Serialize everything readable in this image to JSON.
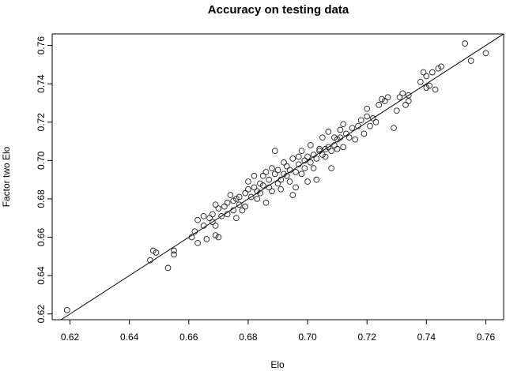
{
  "chart_data": {
    "type": "scatter",
    "title": "Accuracy on testing data",
    "xlabel": "Elo",
    "ylabel": "Factor two Elo",
    "xlim": [
      0.614,
      0.766
    ],
    "ylim": [
      0.617,
      0.766
    ],
    "xticks": [
      "0.62",
      "0.64",
      "0.66",
      "0.68",
      "0.70",
      "0.72",
      "0.74",
      "0.76"
    ],
    "yticks": [
      "0.62",
      "0.64",
      "0.66",
      "0.68",
      "0.70",
      "0.72",
      "0.74",
      "0.76"
    ],
    "grid": false,
    "marker": "open-circle",
    "reference_line": {
      "slope": 1,
      "intercept": 0
    },
    "points": [
      [
        0.619,
        0.622
      ],
      [
        0.647,
        0.648
      ],
      [
        0.648,
        0.653
      ],
      [
        0.649,
        0.652
      ],
      [
        0.653,
        0.644
      ],
      [
        0.655,
        0.653
      ],
      [
        0.655,
        0.651
      ],
      [
        0.661,
        0.66
      ],
      [
        0.662,
        0.663
      ],
      [
        0.663,
        0.669
      ],
      [
        0.663,
        0.657
      ],
      [
        0.665,
        0.666
      ],
      [
        0.665,
        0.671
      ],
      [
        0.666,
        0.659
      ],
      [
        0.667,
        0.67
      ],
      [
        0.668,
        0.668
      ],
      [
        0.668,
        0.672
      ],
      [
        0.669,
        0.677
      ],
      [
        0.669,
        0.666
      ],
      [
        0.669,
        0.661
      ],
      [
        0.67,
        0.675
      ],
      [
        0.67,
        0.66
      ],
      [
        0.671,
        0.671
      ],
      [
        0.672,
        0.676
      ],
      [
        0.673,
        0.678
      ],
      [
        0.673,
        0.672
      ],
      [
        0.674,
        0.682
      ],
      [
        0.675,
        0.674
      ],
      [
        0.675,
        0.679
      ],
      [
        0.676,
        0.67
      ],
      [
        0.676,
        0.68
      ],
      [
        0.677,
        0.677
      ],
      [
        0.677,
        0.681
      ],
      [
        0.678,
        0.674
      ],
      [
        0.679,
        0.676
      ],
      [
        0.679,
        0.683
      ],
      [
        0.68,
        0.689
      ],
      [
        0.68,
        0.685
      ],
      [
        0.681,
        0.681
      ],
      [
        0.682,
        0.686
      ],
      [
        0.682,
        0.692
      ],
      [
        0.683,
        0.684
      ],
      [
        0.683,
        0.68
      ],
      [
        0.684,
        0.688
      ],
      [
        0.684,
        0.683
      ],
      [
        0.685,
        0.687
      ],
      [
        0.685,
        0.692
      ],
      [
        0.686,
        0.694
      ],
      [
        0.686,
        0.678
      ],
      [
        0.687,
        0.686
      ],
      [
        0.687,
        0.69
      ],
      [
        0.688,
        0.696
      ],
      [
        0.688,
        0.684
      ],
      [
        0.689,
        0.693
      ],
      [
        0.689,
        0.705
      ],
      [
        0.69,
        0.688
      ],
      [
        0.69,
        0.695
      ],
      [
        0.691,
        0.69
      ],
      [
        0.691,
        0.685
      ],
      [
        0.692,
        0.699
      ],
      [
        0.692,
        0.693
      ],
      [
        0.693,
        0.697
      ],
      [
        0.693,
        0.692
      ],
      [
        0.694,
        0.695
      ],
      [
        0.694,
        0.689
      ],
      [
        0.695,
        0.701
      ],
      [
        0.695,
        0.682
      ],
      [
        0.696,
        0.694
      ],
      [
        0.696,
        0.686
      ],
      [
        0.697,
        0.698
      ],
      [
        0.697,
        0.702
      ],
      [
        0.698,
        0.693
      ],
      [
        0.698,
        0.705
      ],
      [
        0.699,
        0.7
      ],
      [
        0.699,
        0.696
      ],
      [
        0.7,
        0.702
      ],
      [
        0.7,
        0.689
      ],
      [
        0.701,
        0.699
      ],
      [
        0.701,
        0.708
      ],
      [
        0.702,
        0.696
      ],
      [
        0.702,
        0.703
      ],
      [
        0.703,
        0.701
      ],
      [
        0.703,
        0.69
      ],
      [
        0.704,
        0.705
      ],
      [
        0.704,
        0.706
      ],
      [
        0.705,
        0.712
      ],
      [
        0.705,
        0.703
      ],
      [
        0.706,
        0.706
      ],
      [
        0.706,
        0.702
      ],
      [
        0.707,
        0.715
      ],
      [
        0.707,
        0.707
      ],
      [
        0.708,
        0.705
      ],
      [
        0.708,
        0.696
      ],
      [
        0.709,
        0.708
      ],
      [
        0.709,
        0.712
      ],
      [
        0.71,
        0.711
      ],
      [
        0.71,
        0.706
      ],
      [
        0.711,
        0.716
      ],
      [
        0.711,
        0.712
      ],
      [
        0.712,
        0.719
      ],
      [
        0.712,
        0.707
      ],
      [
        0.713,
        0.714
      ],
      [
        0.714,
        0.712
      ],
      [
        0.715,
        0.717
      ],
      [
        0.716,
        0.711
      ],
      [
        0.717,
        0.718
      ],
      [
        0.718,
        0.721
      ],
      [
        0.719,
        0.714
      ],
      [
        0.72,
        0.723
      ],
      [
        0.72,
        0.727
      ],
      [
        0.721,
        0.718
      ],
      [
        0.722,
        0.722
      ],
      [
        0.723,
        0.72
      ],
      [
        0.724,
        0.729
      ],
      [
        0.725,
        0.732
      ],
      [
        0.726,
        0.731
      ],
      [
        0.727,
        0.733
      ],
      [
        0.729,
        0.717
      ],
      [
        0.73,
        0.726
      ],
      [
        0.731,
        0.733
      ],
      [
        0.732,
        0.735
      ],
      [
        0.733,
        0.729
      ],
      [
        0.734,
        0.734
      ],
      [
        0.734,
        0.731
      ],
      [
        0.738,
        0.741
      ],
      [
        0.739,
        0.746
      ],
      [
        0.74,
        0.738
      ],
      [
        0.74,
        0.744
      ],
      [
        0.741,
        0.739
      ],
      [
        0.742,
        0.746
      ],
      [
        0.743,
        0.737
      ],
      [
        0.744,
        0.748
      ],
      [
        0.745,
        0.749
      ],
      [
        0.753,
        0.761
      ],
      [
        0.755,
        0.752
      ],
      [
        0.76,
        0.756
      ]
    ]
  }
}
